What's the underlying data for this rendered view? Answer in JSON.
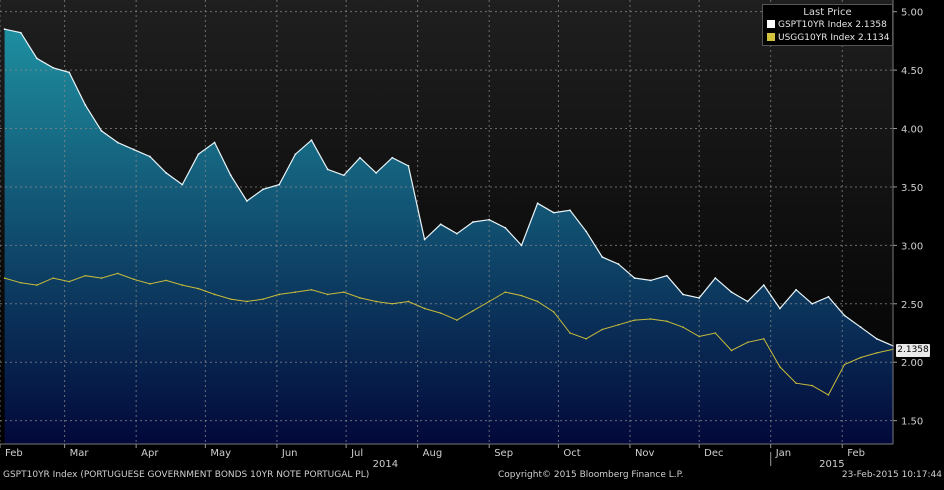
{
  "footer": {
    "left": "GSPT10YR Index (PORTUGUESE GOVERNMENT BONDS 10YR NOTE PORTUGAL PL)",
    "center": "Copyright© 2015 Bloomberg Finance L.P.",
    "right": "23-Feb-2015 10:17:44"
  },
  "colors": {
    "background_top": "#1f1f1f",
    "background_bottom": "#000000",
    "area_top": "#1e8fa0",
    "area_bottom": "#02083a",
    "primary_line": "#e8f4f8",
    "secondary_line": "#c8bb3a",
    "grid": "#8a8a8a"
  },
  "chart_data": {
    "type": "area",
    "legend": {
      "title": "Last Price",
      "placement": "top-right",
      "entries": [
        {
          "label": "GSPT10YR Index",
          "value": "2.1358",
          "color": "#ffffff"
        },
        {
          "label": "USGG10YR Index",
          "value": "2.1134",
          "color": "#d4c23a"
        }
      ]
    },
    "last_value_label": "2.1358",
    "y_axis": {
      "side": "right",
      "ylim": [
        1.3,
        5.1
      ],
      "ticks": [
        "5.00",
        "4.50",
        "4.00",
        "3.50",
        "3.00",
        "2.50",
        "2.00",
        "1.50"
      ]
    },
    "x_axis": {
      "months": [
        "Feb",
        "Mar",
        "Apr",
        "May",
        "Jun",
        "Jul",
        "Aug",
        "Sep",
        "Oct",
        "Nov",
        "Dec",
        "Jan",
        "Feb"
      ],
      "years": [
        "2014",
        "2015"
      ],
      "xlim": [
        "2014-02-01",
        "2015-02-23"
      ]
    },
    "grid": true,
    "series": [
      {
        "name": "GSPT10YR Index",
        "style": "area",
        "x": [
          "2014-02-03",
          "2014-02-10",
          "2014-02-17",
          "2014-02-24",
          "2014-03-03",
          "2014-03-10",
          "2014-03-17",
          "2014-03-24",
          "2014-03-31",
          "2014-04-07",
          "2014-04-14",
          "2014-04-21",
          "2014-04-28",
          "2014-05-05",
          "2014-05-12",
          "2014-05-19",
          "2014-05-26",
          "2014-06-02",
          "2014-06-09",
          "2014-06-16",
          "2014-06-23",
          "2014-06-30",
          "2014-07-07",
          "2014-07-14",
          "2014-07-21",
          "2014-07-28",
          "2014-08-04",
          "2014-08-11",
          "2014-08-18",
          "2014-08-25",
          "2014-09-01",
          "2014-09-08",
          "2014-09-15",
          "2014-09-22",
          "2014-09-29",
          "2014-10-06",
          "2014-10-13",
          "2014-10-20",
          "2014-10-27",
          "2014-11-03",
          "2014-11-10",
          "2014-11-17",
          "2014-11-24",
          "2014-12-01",
          "2014-12-08",
          "2014-12-15",
          "2014-12-22",
          "2014-12-29",
          "2015-01-05",
          "2015-01-12",
          "2015-01-19",
          "2015-01-26",
          "2015-02-02",
          "2015-02-09",
          "2015-02-16",
          "2015-02-23"
        ],
        "values": [
          4.85,
          4.82,
          4.6,
          4.52,
          4.48,
          4.2,
          3.98,
          3.88,
          3.82,
          3.76,
          3.62,
          3.52,
          3.78,
          3.88,
          3.6,
          3.38,
          3.48,
          3.52,
          3.78,
          3.9,
          3.65,
          3.6,
          3.75,
          3.62,
          3.75,
          3.68,
          3.05,
          3.18,
          3.1,
          3.2,
          3.22,
          3.15,
          3.0,
          3.36,
          3.28,
          3.3,
          3.12,
          2.9,
          2.84,
          2.72,
          2.7,
          2.74,
          2.58,
          2.55,
          2.72,
          2.6,
          2.52,
          2.66,
          2.46,
          2.62,
          2.5,
          2.56,
          2.4,
          2.3,
          2.2,
          2.14
        ]
      },
      {
        "name": "USGG10YR Index",
        "style": "line",
        "x": [
          "2014-02-03",
          "2014-02-10",
          "2014-02-17",
          "2014-02-24",
          "2014-03-03",
          "2014-03-10",
          "2014-03-17",
          "2014-03-24",
          "2014-03-31",
          "2014-04-07",
          "2014-04-14",
          "2014-04-21",
          "2014-04-28",
          "2014-05-05",
          "2014-05-12",
          "2014-05-19",
          "2014-05-26",
          "2014-06-02",
          "2014-06-09",
          "2014-06-16",
          "2014-06-23",
          "2014-06-30",
          "2014-07-07",
          "2014-07-14",
          "2014-07-21",
          "2014-07-28",
          "2014-08-04",
          "2014-08-11",
          "2014-08-18",
          "2014-08-25",
          "2014-09-01",
          "2014-09-08",
          "2014-09-15",
          "2014-09-22",
          "2014-09-29",
          "2014-10-06",
          "2014-10-13",
          "2014-10-20",
          "2014-10-27",
          "2014-11-03",
          "2014-11-10",
          "2014-11-17",
          "2014-11-24",
          "2014-12-01",
          "2014-12-08",
          "2014-12-15",
          "2014-12-22",
          "2014-12-29",
          "2015-01-05",
          "2015-01-12",
          "2015-01-19",
          "2015-01-26",
          "2015-02-02",
          "2015-02-09",
          "2015-02-16",
          "2015-02-23"
        ],
        "values": [
          2.72,
          2.68,
          2.66,
          2.72,
          2.69,
          2.74,
          2.72,
          2.76,
          2.71,
          2.67,
          2.7,
          2.66,
          2.63,
          2.58,
          2.54,
          2.52,
          2.54,
          2.58,
          2.6,
          2.62,
          2.58,
          2.6,
          2.55,
          2.52,
          2.5,
          2.52,
          2.46,
          2.42,
          2.36,
          2.44,
          2.52,
          2.6,
          2.57,
          2.52,
          2.43,
          2.25,
          2.2,
          2.28,
          2.32,
          2.36,
          2.37,
          2.35,
          2.3,
          2.22,
          2.25,
          2.1,
          2.17,
          2.2,
          1.96,
          1.82,
          1.8,
          1.72,
          1.98,
          2.04,
          2.08,
          2.11
        ]
      }
    ]
  }
}
